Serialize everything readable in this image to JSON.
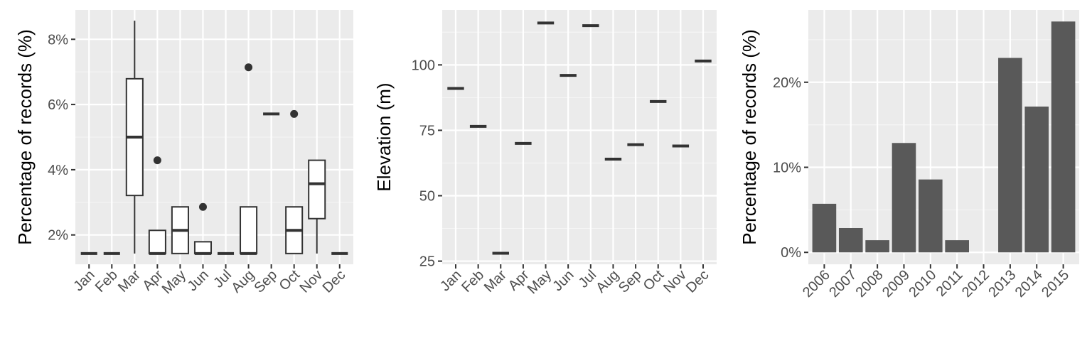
{
  "colors": {
    "panel": "#ebebeb",
    "grid_major": "#ffffff",
    "grid_minor": "#f5f5f5",
    "ink": "#333333",
    "bar": "#595959",
    "tick_text": "#4d4d4d"
  },
  "chart_data": [
    {
      "type": "boxplot",
      "ylabel": "Percentage of records (%)",
      "xlabel": "",
      "ylim": [
        1.1,
        8.9
      ],
      "y_ticks": [
        2,
        4,
        6,
        8
      ],
      "y_tick_labels": [
        "2%",
        "4%",
        "6%",
        "8%"
      ],
      "grid": true,
      "categories": [
        "Jan",
        "Feb",
        "Mar",
        "Apr",
        "May",
        "Jun",
        "Jul",
        "Aug",
        "Sep",
        "Oct",
        "Nov",
        "Dec"
      ],
      "boxes": [
        {
          "min": 1.43,
          "q1": 1.43,
          "median": 1.43,
          "q3": 1.43,
          "max": 1.43,
          "outliers": []
        },
        {
          "min": 1.43,
          "q1": 1.43,
          "median": 1.43,
          "q3": 1.43,
          "max": 1.43,
          "outliers": []
        },
        {
          "min": 1.43,
          "q1": 3.21,
          "median": 5.0,
          "q3": 6.79,
          "max": 8.57,
          "outliers": []
        },
        {
          "min": 1.43,
          "q1": 1.43,
          "median": 1.43,
          "q3": 2.14,
          "max": 2.14,
          "outliers": [
            4.29
          ]
        },
        {
          "min": 1.43,
          "q1": 1.43,
          "median": 2.14,
          "q3": 2.86,
          "max": 2.86,
          "outliers": []
        },
        {
          "min": 1.43,
          "q1": 1.43,
          "median": 1.43,
          "q3": 1.79,
          "max": 1.79,
          "outliers": [
            2.86
          ]
        },
        {
          "min": 1.43,
          "q1": 1.43,
          "median": 1.43,
          "q3": 1.43,
          "max": 1.43,
          "outliers": []
        },
        {
          "min": 1.43,
          "q1": 1.43,
          "median": 1.43,
          "q3": 2.86,
          "max": 2.86,
          "outliers": [
            7.14
          ]
        },
        {
          "min": 5.71,
          "q1": 5.71,
          "median": 5.71,
          "q3": 5.71,
          "max": 5.71,
          "outliers": []
        },
        {
          "min": 1.43,
          "q1": 1.43,
          "median": 2.14,
          "q3": 2.86,
          "max": 2.86,
          "outliers": [
            5.71
          ]
        },
        {
          "min": 1.43,
          "q1": 2.5,
          "median": 3.57,
          "q3": 4.29,
          "max": 4.29,
          "outliers": []
        },
        {
          "min": 1.43,
          "q1": 1.43,
          "median": 1.43,
          "q3": 1.43,
          "max": 1.43,
          "outliers": []
        }
      ]
    },
    {
      "type": "boxplot",
      "ylabel": "Elevation (m)",
      "xlabel": "",
      "ylim": [
        23.8,
        121.0
      ],
      "y_ticks": [
        25,
        50,
        75,
        100
      ],
      "y_tick_labels": [
        "25",
        "50",
        "75",
        "100"
      ],
      "grid": true,
      "categories": [
        "Jan",
        "Feb",
        "Mar",
        "Apr",
        "May",
        "Jun",
        "Jul",
        "Aug",
        "Sep",
        "Oct",
        "Nov",
        "Dec"
      ],
      "values": [
        91,
        76.5,
        28,
        70,
        116,
        96,
        115,
        64,
        69.5,
        86,
        69,
        101.5
      ]
    },
    {
      "type": "bar",
      "ylabel": "Percentage of records (%)",
      "xlabel": "",
      "ylim": [
        -1.4,
        28.5
      ],
      "y_ticks": [
        0,
        10,
        20
      ],
      "y_tick_labels": [
        "0%",
        "10%",
        "20%"
      ],
      "grid": true,
      "categories": [
        "2006",
        "2007",
        "2008",
        "2009",
        "2010",
        "2011",
        "2012",
        "2013",
        "2014",
        "2015"
      ],
      "values": [
        5.71,
        2.86,
        1.43,
        12.86,
        8.57,
        1.43,
        0,
        22.86,
        17.14,
        27.14
      ]
    }
  ]
}
